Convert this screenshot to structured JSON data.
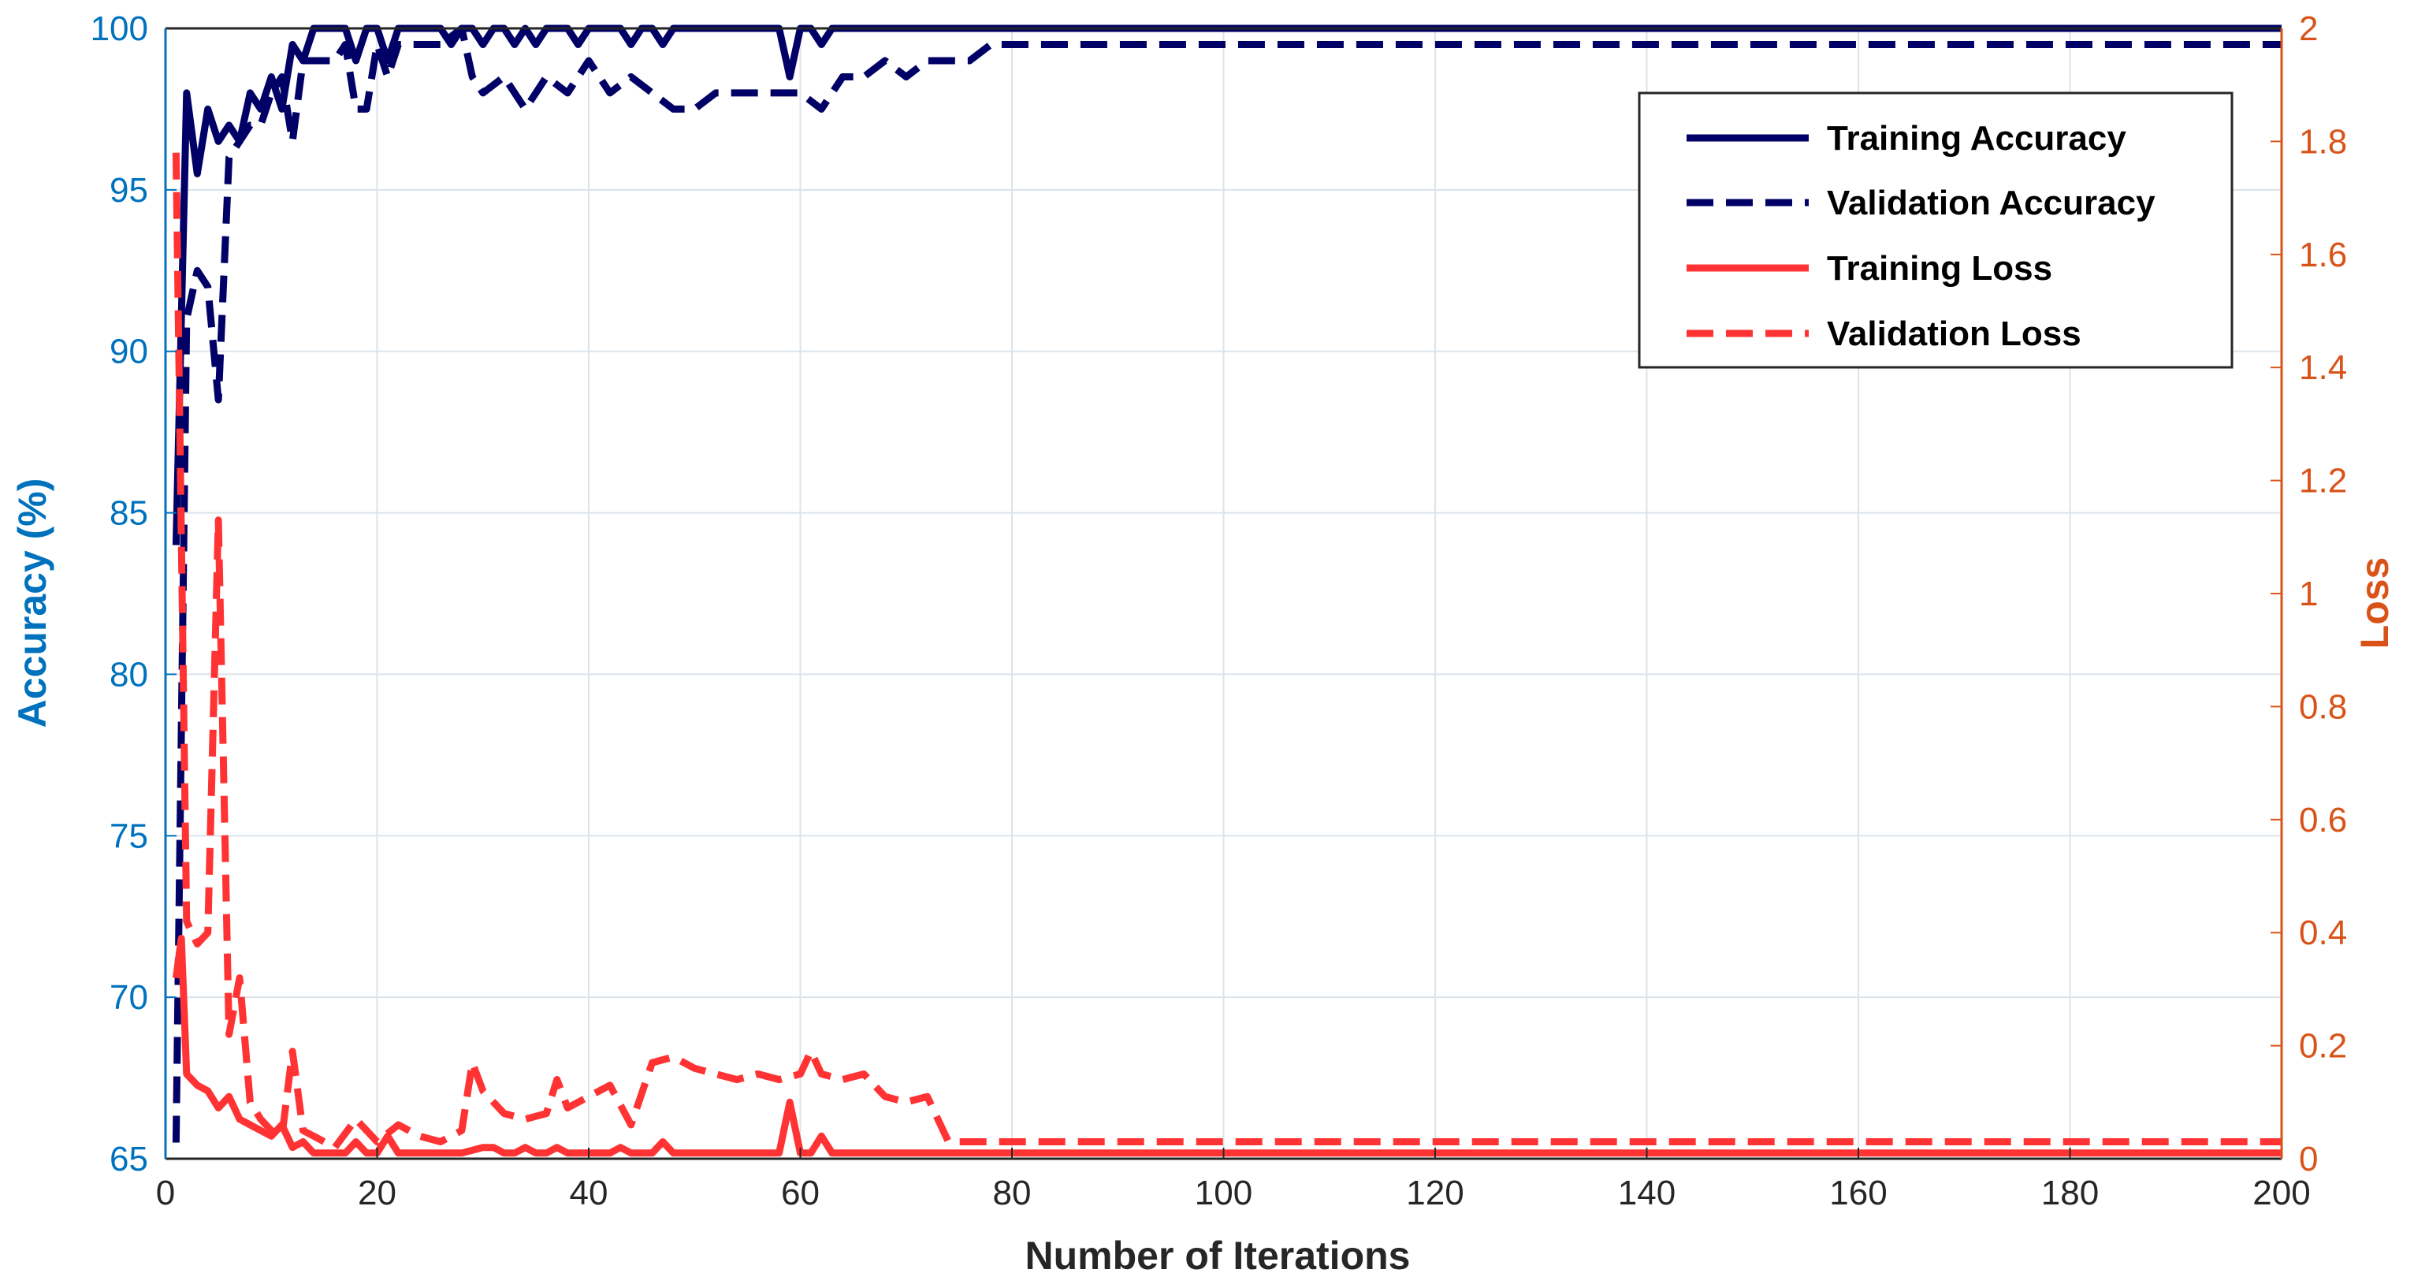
{
  "chart_data": {
    "type": "line",
    "title": "",
    "xlabel": "Number of Iterations",
    "ylabel": "Accuracy (%)",
    "y2label": "Loss",
    "xlim": [
      0,
      200
    ],
    "ylim": [
      65,
      100
    ],
    "y2lim": [
      0,
      2
    ],
    "xticks": [
      0,
      20,
      40,
      60,
      80,
      100,
      120,
      140,
      160,
      180,
      200
    ],
    "yticks": [
      65,
      70,
      75,
      80,
      85,
      90,
      95,
      100
    ],
    "y2ticks": [
      0,
      0.2,
      0.4,
      0.6,
      0.8,
      1,
      1.2,
      1.4,
      1.6,
      1.8,
      2
    ],
    "y2ticklabels": [
      "0",
      "0.2",
      "0.4",
      "0.6",
      "0.8",
      "1",
      "1.2",
      "1.4",
      "1.6",
      "1.8",
      "2"
    ],
    "grid": true,
    "legend_position": "top-right",
    "colors": {
      "accuracy_axis": "#0072BD",
      "loss_axis": "#D95319",
      "accuracy_series": "#000066",
      "loss_series": "#FF3333",
      "grid": "#DCE3EA",
      "tick_label_x": "#262626"
    },
    "series": [
      {
        "name": "Training Accuracy",
        "axis": "left",
        "style": "solid",
        "x": [
          1,
          1.5,
          2,
          3,
          4,
          5,
          6,
          7,
          8,
          9,
          10,
          11,
          12,
          13,
          14,
          15,
          16,
          17,
          18,
          19,
          20,
          21,
          22,
          23,
          24,
          25,
          26,
          27,
          28,
          29,
          30,
          31,
          32,
          33,
          34,
          35,
          36,
          37,
          38,
          39,
          40,
          41,
          42,
          43,
          44,
          45,
          46,
          47,
          48,
          49,
          50,
          55,
          58,
          59,
          60,
          61,
          62,
          63,
          64,
          65,
          70,
          80,
          100,
          120,
          140,
          160,
          180,
          200
        ],
        "y": [
          84,
          91,
          98,
          95.5,
          97.5,
          96.5,
          97,
          96.5,
          98,
          97.5,
          98.5,
          97.5,
          99.5,
          99,
          100,
          100,
          100,
          100,
          99,
          100,
          100,
          99,
          100,
          100,
          100,
          100,
          100,
          99.5,
          100,
          100,
          99.5,
          100,
          100,
          99.5,
          100,
          99.5,
          100,
          100,
          100,
          99.5,
          100,
          100,
          100,
          100,
          99.5,
          100,
          100,
          99.5,
          100,
          100,
          100,
          100,
          100,
          98.5,
          100,
          100,
          99.5,
          100,
          100,
          100,
          100,
          100,
          100,
          100,
          100,
          100,
          100,
          100
        ]
      },
      {
        "name": "Validation Accuracy",
        "axis": "left",
        "style": "dashed",
        "x": [
          1,
          2,
          3,
          4,
          5,
          6,
          7,
          8,
          9,
          10,
          11,
          12,
          13,
          14,
          15,
          16,
          17,
          18,
          19,
          20,
          21,
          22,
          24,
          26,
          28,
          29,
          30,
          32,
          34,
          36,
          38,
          40,
          42,
          44,
          46,
          48,
          50,
          52,
          54,
          56,
          58,
          60,
          62,
          64,
          66,
          68,
          70,
          72,
          74,
          76,
          78,
          80,
          100,
          120,
          140,
          160,
          175,
          180,
          185,
          190,
          200
        ],
        "y": [
          65.5,
          91,
          92.5,
          92,
          88.5,
          96,
          96.5,
          97,
          97,
          98,
          98.5,
          96.5,
          99,
          99,
          99,
          99,
          99.5,
          97.5,
          97.5,
          99.5,
          98.5,
          99.5,
          99.5,
          99.5,
          100,
          98.5,
          98,
          98.5,
          97.5,
          98.5,
          98,
          99,
          98,
          98.5,
          98,
          97.5,
          97.5,
          98,
          98,
          98,
          98,
          98,
          97.5,
          98.5,
          98.5,
          99,
          98.5,
          99,
          99,
          99,
          99.5,
          99.5,
          99.5,
          99.5,
          99.5,
          99.5,
          99.5,
          99.5,
          99.5,
          99.5,
          99.5
        ]
      },
      {
        "name": "Training Loss",
        "axis": "right",
        "style": "solid",
        "x": [
          1,
          1.5,
          2,
          3,
          4,
          5,
          6,
          7,
          8,
          9,
          10,
          11,
          12,
          13,
          14,
          15,
          16,
          17,
          18,
          19,
          20,
          21,
          22,
          23,
          24,
          25,
          28,
          30,
          31,
          32,
          33,
          34,
          35,
          36,
          37,
          38,
          40,
          42,
          43,
          44,
          45,
          46,
          47,
          48,
          50,
          55,
          58,
          59,
          60,
          61,
          62,
          63,
          64,
          65,
          70,
          80,
          100,
          120,
          140,
          160,
          180,
          200
        ],
        "y": [
          0.32,
          0.39,
          0.15,
          0.13,
          0.12,
          0.09,
          0.11,
          0.07,
          0.06,
          0.05,
          0.04,
          0.06,
          0.02,
          0.03,
          0.01,
          0.01,
          0.01,
          0.01,
          0.03,
          0.01,
          0.01,
          0.04,
          0.01,
          0.01,
          0.01,
          0.01,
          0.01,
          0.02,
          0.02,
          0.01,
          0.01,
          0.02,
          0.01,
          0.01,
          0.02,
          0.01,
          0.01,
          0.01,
          0.02,
          0.01,
          0.01,
          0.01,
          0.03,
          0.01,
          0.01,
          0.01,
          0.01,
          0.1,
          0.01,
          0.01,
          0.04,
          0.01,
          0.01,
          0.01,
          0.01,
          0.01,
          0.01,
          0.01,
          0.01,
          0.01,
          0.01,
          0.01
        ]
      },
      {
        "name": "Validation Loss",
        "axis": "right",
        "style": "dashed",
        "x": [
          1,
          2,
          3,
          4,
          5,
          6,
          7,
          8,
          9,
          10,
          11,
          12,
          13,
          14,
          15,
          16,
          18,
          20,
          22,
          24,
          26,
          28,
          29,
          30,
          32,
          34,
          36,
          37,
          38,
          40,
          42,
          44,
          46,
          48,
          50,
          52,
          54,
          56,
          58,
          60,
          61,
          62,
          64,
          66,
          68,
          70,
          72,
          74,
          76,
          78,
          80,
          100,
          120,
          140,
          160,
          180,
          200
        ],
        "y": [
          1.78,
          0.42,
          0.38,
          0.4,
          1.13,
          0.22,
          0.32,
          0.1,
          0.07,
          0.05,
          0.04,
          0.19,
          0.05,
          0.04,
          0.03,
          0.02,
          0.07,
          0.03,
          0.06,
          0.04,
          0.03,
          0.05,
          0.17,
          0.12,
          0.08,
          0.07,
          0.08,
          0.14,
          0.09,
          0.11,
          0.13,
          0.06,
          0.17,
          0.18,
          0.16,
          0.15,
          0.14,
          0.15,
          0.14,
          0.15,
          0.19,
          0.15,
          0.14,
          0.15,
          0.11,
          0.1,
          0.11,
          0.03,
          0.03,
          0.03,
          0.03,
          0.03,
          0.03,
          0.03,
          0.03,
          0.03,
          0.03
        ]
      }
    ]
  }
}
